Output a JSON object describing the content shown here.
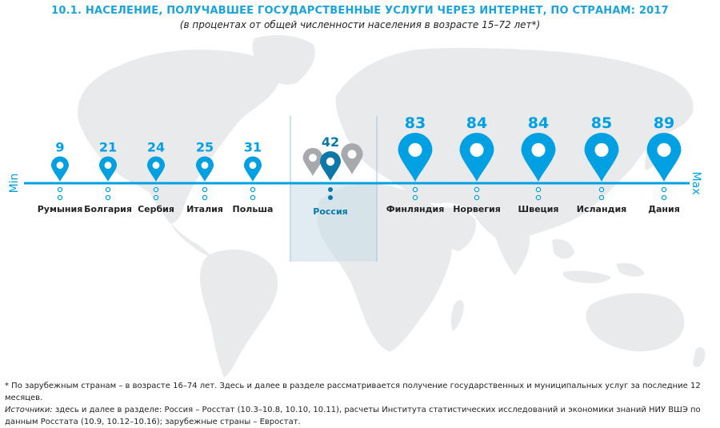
{
  "title": "10.1. НАСЕЛЕНИЕ, ПОЛУЧАВШЕЕ ГОСУДАРСТВЕННЫЕ УСЛУГИ ЧЕРЕЗ ИНТЕРНЕТ, ПО СТРАНАМ: 2017",
  "subtitle": "(в процентах от общей численности населения в возрасте 15–72 лет*)",
  "footnote": {
    "line1": "*  По зарубежным странам – в возрасте 16–74 лет. Здесь и далее в разделе рассматривается получение государственных и муниципальных услуг за последние 12 месяцев.",
    "sources_label": "Источники:",
    "sources_text": " здесь и далее в разделе: Россия – Росстат (10.3–10.8, 10.10, 10.11), расчеты Института статистических исследований и экономики знаний НИУ ВШЭ по данным Росстата (10.9, 10.12–10.16); зарубежные страны – Евростат."
  },
  "colors": {
    "accent": "#00a0e3",
    "highlight": "#0a78a8",
    "ghost": "#a7a9ac",
    "map": "#e9eaeb"
  },
  "chart_data": {
    "type": "scatter",
    "axis_min_label": "Min",
    "axis_max_label": "Max",
    "categories": [
      "Румыния",
      "Болгария",
      "Сербия",
      "Италия",
      "Польша",
      "Россия",
      "Финляндия",
      "Норвегия",
      "Швеция",
      "Исландия",
      "Дания"
    ],
    "values": [
      9,
      21,
      24,
      25,
      31,
      42,
      83,
      84,
      84,
      85,
      89
    ],
    "highlight": "Россия"
  }
}
